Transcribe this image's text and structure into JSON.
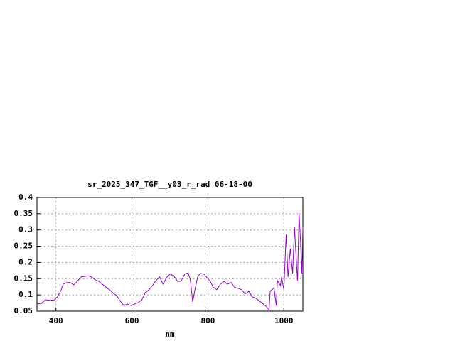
{
  "chart_data": {
    "type": "line",
    "title": "sr_2025_347_TGF__y03_r_rad 06-18-00",
    "x_label": "nm",
    "x": [
      350,
      362,
      372,
      385,
      396,
      404,
      412,
      419,
      428,
      438,
      447,
      456,
      466,
      475,
      485,
      494,
      504,
      513,
      522,
      532,
      541,
      551,
      560,
      569,
      579,
      588,
      598,
      607,
      616,
      626,
      635,
      645,
      654,
      663,
      673,
      682,
      692,
      701,
      710,
      720,
      729,
      739,
      748,
      754,
      760,
      765,
      773,
      780,
      790,
      799,
      806,
      814,
      823,
      833,
      842,
      851,
      861,
      870,
      880,
      889,
      898,
      908,
      917,
      927,
      936,
      946,
      955,
      961,
      964,
      974,
      980,
      983,
      991,
      994,
      1000,
      1006,
      1011,
      1017,
      1023,
      1028,
      1032,
      1036,
      1040,
      1044,
      1047,
      1050
    ],
    "series": [
      {
        "color": "#9400d3",
        "values": [
          0.072,
          0.074,
          0.085,
          0.083,
          0.085,
          0.094,
          0.111,
          0.133,
          0.138,
          0.138,
          0.131,
          0.142,
          0.155,
          0.157,
          0.159,
          0.155,
          0.146,
          0.142,
          0.133,
          0.124,
          0.116,
          0.105,
          0.098,
          0.081,
          0.067,
          0.072,
          0.067,
          0.072,
          0.076,
          0.085,
          0.107,
          0.116,
          0.129,
          0.144,
          0.155,
          0.133,
          0.155,
          0.164,
          0.159,
          0.142,
          0.142,
          0.164,
          0.168,
          0.144,
          0.078,
          0.111,
          0.155,
          0.166,
          0.164,
          0.151,
          0.142,
          0.124,
          0.116,
          0.133,
          0.142,
          0.133,
          0.138,
          0.124,
          0.12,
          0.116,
          0.103,
          0.111,
          0.094,
          0.089,
          0.081,
          0.072,
          0.063,
          0.054,
          0.111,
          0.122,
          0.067,
          0.144,
          0.129,
          0.155,
          0.116,
          0.286,
          0.155,
          0.243,
          0.166,
          0.308,
          0.221,
          0.144,
          0.352,
          0.264,
          0.166,
          0.308
        ]
      }
    ],
    "xlim": [
      350,
      1050
    ],
    "xticks": [
      400,
      600,
      800,
      1000
    ],
    "ylim": [
      0.05,
      0.4
    ],
    "yticks": [
      0.05,
      0.1,
      0.15,
      0.2,
      0.25,
      0.3,
      0.35,
      0.4
    ],
    "grid": true
  }
}
